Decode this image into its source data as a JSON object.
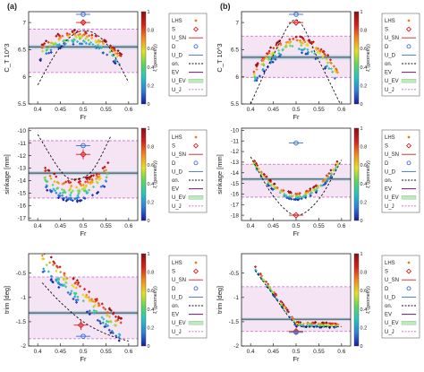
{
  "panel_labels": [
    "(a)",
    "(b)"
  ],
  "colorbar": {
    "label": "ξ (geometry)",
    "ticks": [
      "0",
      "0.2",
      "0.4",
      "0.6",
      "0.8",
      "1"
    ],
    "colors": [
      "#1a1aa0",
      "#2f7fd6",
      "#27c3c3",
      "#5ed65e",
      "#e6e020",
      "#f08a1c",
      "#d61f1f",
      "#8a0f0f"
    ]
  },
  "legend": [
    "LHS",
    "S",
    "U_SN",
    "D",
    "U_D",
    "on.",
    "EV",
    "U_EV",
    "U_J"
  ],
  "colors": {
    "envelope": "#cc66cc",
    "ev": "#555555",
    "uev": "#b8d4e8",
    "s": "#d62020",
    "d": "#3a6fd8",
    "dashed": "#111111"
  },
  "chart_data": [
    {
      "type": "scatter",
      "panel": "a",
      "xlabel": "Fr",
      "ylabel": "C_T 10^3",
      "xlim": [
        0.38,
        0.62
      ],
      "ylim": [
        5.5,
        7.2
      ],
      "xticks": [
        "0.4",
        "0.45",
        "0.5",
        "0.55",
        "0.6"
      ],
      "yticks": [
        "5.5",
        "6",
        "6.5",
        "7"
      ],
      "uj": [
        6.08,
        6.88
      ],
      "ev": 6.55,
      "uev": [
        6.51,
        6.59
      ],
      "s_point": {
        "x": 0.5,
        "y": 7.0,
        "err": 0.06
      },
      "d_point": {
        "x": 0.5,
        "y": 7.18,
        "err": 0.02
      },
      "cloud": {
        "fmin": 0.405,
        "fmax": 0.585,
        "y0": 6.72,
        "k": 45,
        "pc": 0.485,
        "spread": 0.14
      },
      "dashed": [
        [
          0.4,
          5.85
        ],
        [
          0.45,
          6.55
        ],
        [
          0.5,
          6.85
        ],
        [
          0.55,
          6.62
        ],
        [
          0.6,
          5.9
        ]
      ]
    },
    {
      "type": "scatter",
      "panel": "b",
      "xlabel": "Fr",
      "ylabel": "C_T 10^3",
      "xlim": [
        0.38,
        0.62
      ],
      "ylim": [
        5.5,
        7.2
      ],
      "xticks": [
        "0.4",
        "0.45",
        "0.5",
        "0.55",
        "0.6"
      ],
      "yticks": [
        "5.5",
        "6",
        "6.5",
        "7"
      ],
      "uj": [
        5.99,
        6.75
      ],
      "ev": 6.36,
      "uev": [
        6.32,
        6.4
      ],
      "s_point": {
        "x": 0.5,
        "y": 7.0,
        "err": 0.02
      },
      "d_point": {
        "x": 0.5,
        "y": 7.5,
        "err": 0.02
      },
      "cloud": {
        "fmin": 0.405,
        "fmax": 0.595,
        "y0": 6.6,
        "k": 70,
        "pc": 0.5,
        "spread": 0.16
      },
      "dashed": [
        [
          0.4,
          5.5
        ],
        [
          0.45,
          6.4
        ],
        [
          0.5,
          7.05
        ],
        [
          0.55,
          6.3
        ],
        [
          0.6,
          5.45
        ]
      ]
    },
    {
      "type": "scatter",
      "panel": "a",
      "xlabel": "Fr",
      "ylabel": "sinkage [mm]",
      "xlim": [
        0.38,
        0.62
      ],
      "ylim": [
        -17.2,
        -9.8
      ],
      "xticks": [
        "0.4",
        "0.45",
        "0.5",
        "0.55",
        "0.6"
      ],
      "yticks": [
        "-17",
        "-16",
        "-15",
        "-14",
        "-13",
        "-12",
        "-11",
        "-10"
      ],
      "uj": [
        -15.4,
        -10.8
      ],
      "ev": -13.4,
      "uev": [
        -13.55,
        -13.25
      ],
      "s_point": {
        "x": 0.5,
        "y": -11.9,
        "err": 0.4
      },
      "d_point": {
        "x": 0.5,
        "y": -11.2,
        "err": 0.3
      },
      "cloud": {
        "fmin": 0.415,
        "fmax": 0.555,
        "y0": -14.8,
        "k": -260,
        "pc": 0.48,
        "spread": 0.9
      },
      "dashed": [
        [
          0.4,
          -10.3
        ],
        [
          0.45,
          -13.2
        ],
        [
          0.48,
          -13.9
        ],
        [
          0.52,
          -13.2
        ],
        [
          0.56,
          -10.5
        ]
      ]
    },
    {
      "type": "scatter",
      "panel": "b",
      "xlabel": "Fr",
      "ylabel": "sinkage [mm]",
      "xlim": [
        0.38,
        0.62
      ],
      "ylim": [
        -18.5,
        -9.8
      ],
      "xticks": [
        "0.4",
        "0.45",
        "0.5",
        "0.55",
        "0.6"
      ],
      "yticks": [
        "-18",
        "-17",
        "-16",
        "-15",
        "-14",
        "-13",
        "-12",
        "-11",
        "-10"
      ],
      "uj": [
        -16.3,
        -13.2
      ],
      "ev": -14.6,
      "uev": [
        -14.75,
        -14.45
      ],
      "s_point": {
        "x": 0.5,
        "y": -18.0,
        "err": 0.1
      },
      "d_point": {
        "x": 0.5,
        "y": -11.2,
        "err": 0.2
      },
      "cloud": {
        "fmin": 0.405,
        "fmax": 0.595,
        "y0": -16.2,
        "k": -360,
        "pc": 0.5,
        "spread": 0.35
      },
      "dashed": [
        [
          0.4,
          -12.5
        ],
        [
          0.45,
          -16.2
        ],
        [
          0.5,
          -18.0
        ],
        [
          0.55,
          -16.5
        ],
        [
          0.6,
          -12.8
        ]
      ]
    },
    {
      "type": "scatter",
      "panel": "a",
      "xlabel": "Fr",
      "ylabel": "trim [deg]",
      "xlim": [
        0.38,
        0.62
      ],
      "ylim": [
        -2.0,
        -0.1
      ],
      "xticks": [
        "0.4",
        "0.45",
        "0.5",
        "0.55",
        "0.6"
      ],
      "yticks": [
        "-2",
        "-1.5",
        "-1",
        "-0.5"
      ],
      "uj": [
        -1.85,
        -0.58
      ],
      "ev": -1.32,
      "uev": [
        -1.36,
        -1.28
      ],
      "s_point": {
        "x": 0.495,
        "y": -1.57,
        "err": 0.1
      },
      "d_point": {
        "x": 0.5,
        "y": -1.8,
        "err": 0.05
      },
      "trend": {
        "x0": 0.41,
        "y0": -0.25,
        "x1": 0.58,
        "y1": -1.65,
        "spread": 0.25,
        "fmax": 0.585
      },
      "dashed": [
        [
          0.41,
          -0.7
        ],
        [
          0.45,
          -1.1
        ],
        [
          0.5,
          -1.5
        ],
        [
          0.55,
          -1.75
        ],
        [
          0.6,
          -1.9
        ]
      ]
    },
    {
      "type": "scatter",
      "panel": "b",
      "xlabel": "Fr",
      "ylabel": "trim [deg]",
      "xlim": [
        0.38,
        0.62
      ],
      "ylim": [
        -2.0,
        -0.1
      ],
      "xticks": [
        "0.4",
        "0.45",
        "0.5",
        "0.55",
        "0.6"
      ],
      "yticks": [
        "-2",
        "-1.5",
        "-1",
        "-0.5"
      ],
      "uj": [
        -1.7,
        -0.78
      ],
      "ev": -1.45,
      "uev": [
        -1.48,
        -1.42
      ],
      "s_point": {
        "x": 0.5,
        "y": -1.7,
        "err": 0.03
      },
      "d_point": {
        "x": 0.5,
        "y": -1.72,
        "err": 0.02
      },
      "hockey": {
        "x0": 0.41,
        "y0": -0.4,
        "xk": 0.5,
        "yk": -1.55,
        "x1": 0.595,
        "y1": -1.58,
        "spread": 0.05
      },
      "dashed": [
        [
          0.41,
          -0.45
        ],
        [
          0.45,
          -0.95
        ],
        [
          0.5,
          -1.55
        ],
        [
          0.55,
          -1.6
        ],
        [
          0.6,
          -1.6
        ]
      ]
    }
  ]
}
